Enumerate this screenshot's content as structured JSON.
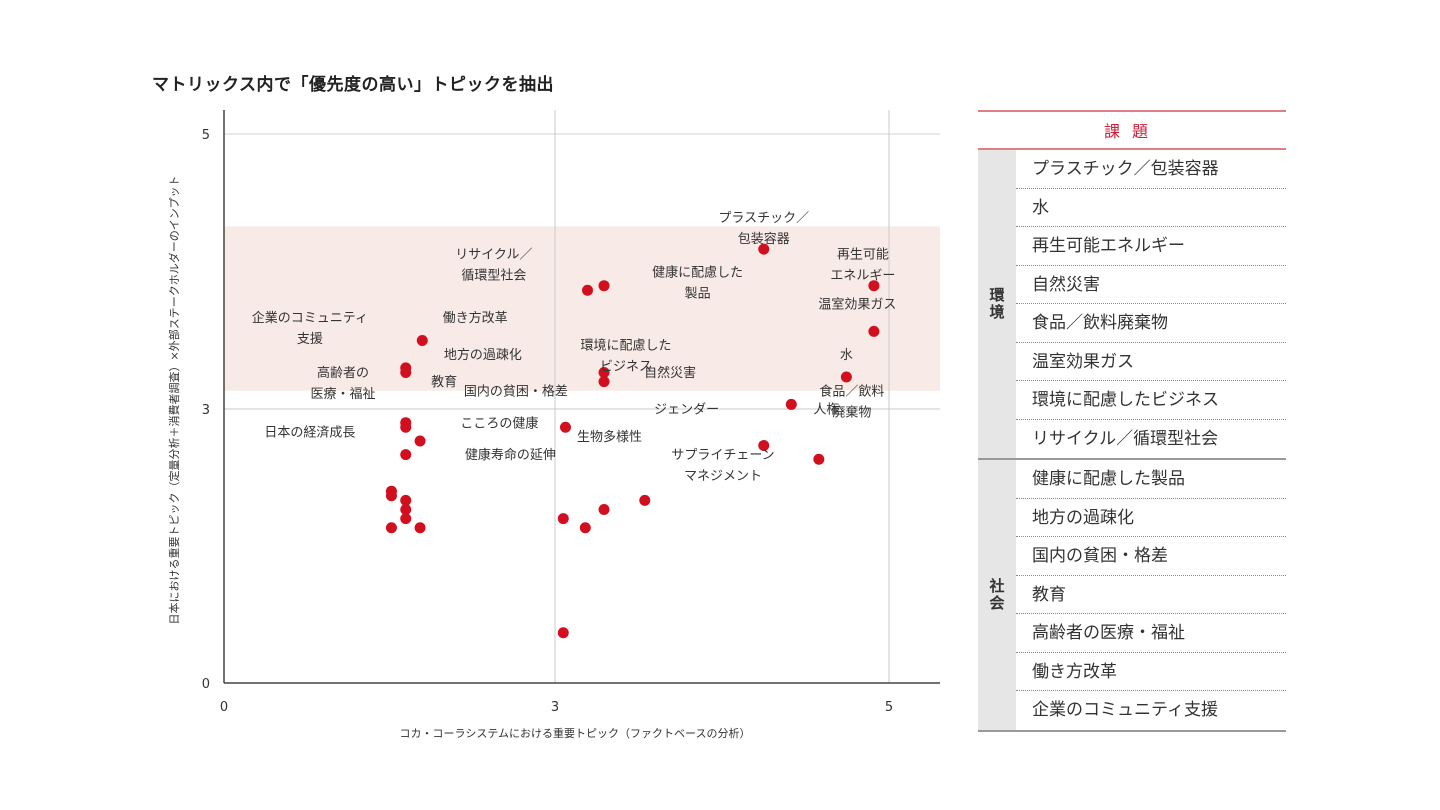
{
  "title": "マトリックス内で「優先度の高い」トピックを抽出",
  "chart_data": {
    "type": "scatter",
    "xlabel": "コカ・コーラシステムにおける重要トピック（ファクトベースの分析）",
    "ylabel": "日本における重要トピック（定量分析＋消費者調査）×外部ステークホルダーのインプット",
    "xlim": [
      0,
      6.5
    ],
    "ylim": [
      0,
      5.5
    ],
    "x_ticks": [
      "0",
      "3",
      "5"
    ],
    "y_ticks": [
      "0",
      "3",
      "5"
    ],
    "highlight_region_y": [
      3.2,
      5.0
    ],
    "point_color": "#d10f1f",
    "highlight_color": "#f8ebe7",
    "points": [
      {
        "x": 4.9,
        "y": 4.75
      },
      {
        "x": 3.3,
        "y": 4.3
      },
      {
        "x": 3.45,
        "y": 4.35
      },
      {
        "x": 5.9,
        "y": 4.35
      },
      {
        "x": 5.9,
        "y": 3.85
      },
      {
        "x": 1.8,
        "y": 3.75
      },
      {
        "x": 1.65,
        "y": 3.45
      },
      {
        "x": 1.65,
        "y": 3.4
      },
      {
        "x": 3.45,
        "y": 3.4
      },
      {
        "x": 3.45,
        "y": 3.3
      },
      {
        "x": 5.65,
        "y": 3.35
      },
      {
        "x": 5.15,
        "y": 3.05
      },
      {
        "x": 1.65,
        "y": 2.85
      },
      {
        "x": 1.65,
        "y": 2.8
      },
      {
        "x": 1.78,
        "y": 2.65
      },
      {
        "x": 3.1,
        "y": 2.8
      },
      {
        "x": 1.65,
        "y": 2.5
      },
      {
        "x": 4.9,
        "y": 2.6
      },
      {
        "x": 5.4,
        "y": 2.45
      },
      {
        "x": 1.52,
        "y": 2.1
      },
      {
        "x": 1.52,
        "y": 2.05
      },
      {
        "x": 1.65,
        "y": 2.0
      },
      {
        "x": 1.65,
        "y": 1.9
      },
      {
        "x": 1.65,
        "y": 1.8
      },
      {
        "x": 3.82,
        "y": 2.0
      },
      {
        "x": 3.45,
        "y": 1.9
      },
      {
        "x": 3.08,
        "y": 1.8
      },
      {
        "x": 3.28,
        "y": 1.7
      },
      {
        "x": 1.52,
        "y": 1.7
      },
      {
        "x": 1.78,
        "y": 1.7
      },
      {
        "x": 3.08,
        "y": 0.55
      }
    ],
    "annotations": [
      {
        "lines": [
          "プラスチック／",
          "包装容器"
        ],
        "x": 4.9,
        "y": 5.05,
        "anchor": "middle"
      },
      {
        "lines": [
          "再生可能",
          "エネルギー"
        ],
        "x": 5.8,
        "y": 4.65,
        "anchor": "middle"
      },
      {
        "lines": [
          "温室効果ガス"
        ],
        "x": 5.75,
        "y": 4.1,
        "anchor": "middle"
      },
      {
        "lines": [
          "リサイクル／",
          "循環型社会"
        ],
        "x": 2.45,
        "y": 4.65,
        "anchor": "middle"
      },
      {
        "lines": [
          "健康に配慮した",
          "製品"
        ],
        "x": 4.3,
        "y": 4.45,
        "anchor": "middle"
      },
      {
        "lines": [
          "企業のコミュニティ",
          "支援"
        ],
        "x": 0.78,
        "y": 3.95,
        "anchor": "middle"
      },
      {
        "lines": [
          "働き方改革"
        ],
        "x": 2.28,
        "y": 3.95,
        "anchor": "middle"
      },
      {
        "lines": [
          "環境に配慮した",
          "ビジネス"
        ],
        "x": 3.65,
        "y": 3.65,
        "anchor": "middle"
      },
      {
        "lines": [
          "地方の過疎化"
        ],
        "x": 2.35,
        "y": 3.55,
        "anchor": "middle"
      },
      {
        "lines": [
          "水"
        ],
        "x": 5.65,
        "y": 3.55,
        "anchor": "middle"
      },
      {
        "lines": [
          "高齢者の",
          "医療・福祉"
        ],
        "x": 1.08,
        "y": 3.35,
        "anchor": "middle"
      },
      {
        "lines": [
          "教育"
        ],
        "x": 1.88,
        "y": 3.25,
        "anchor": "start"
      },
      {
        "lines": [
          "自然災害"
        ],
        "x": 4.05,
        "y": 3.35,
        "anchor": "middle"
      },
      {
        "lines": [
          "国内の貧困・格差"
        ],
        "x": 2.65,
        "y": 3.15,
        "anchor": "middle"
      },
      {
        "lines": [
          "食品／飲料",
          "廃棄物"
        ],
        "x": 5.7,
        "y": 3.15,
        "anchor": "middle"
      },
      {
        "lines": [
          "ジェンダー"
        ],
        "x": 4.2,
        "y": 2.95,
        "anchor": "middle"
      },
      {
        "lines": [
          "人権"
        ],
        "x": 5.35,
        "y": 2.95,
        "anchor": "start"
      },
      {
        "lines": [
          "日本の経済成長"
        ],
        "x": 0.78,
        "y": 2.7,
        "anchor": "middle"
      },
      {
        "lines": [
          "こころの健康"
        ],
        "x": 2.5,
        "y": 2.8,
        "anchor": "middle"
      },
      {
        "lines": [
          "生物多様性"
        ],
        "x": 3.5,
        "y": 2.65,
        "anchor": "middle"
      },
      {
        "lines": [
          "健康寿命の延伸"
        ],
        "x": 2.6,
        "y": 2.45,
        "anchor": "middle"
      },
      {
        "lines": [
          "サプライチェーン",
          "マネジメント"
        ],
        "x": 4.53,
        "y": 2.45,
        "anchor": "middle"
      }
    ]
  },
  "issues_table": {
    "header": "課題",
    "groups": [
      {
        "category": "環境",
        "items": [
          "プラスチック／包装容器",
          "水",
          "再生可能エネルギー",
          "自然災害",
          "食品／飲料廃棄物",
          "温室効果ガス",
          "環境に配慮したビジネス",
          "リサイクル／循環型社会"
        ]
      },
      {
        "category": "社会",
        "items": [
          "健康に配慮した製品",
          "地方の過疎化",
          "国内の貧困・格差",
          "教育",
          "高齢者の医療・福祉",
          "働き方改革",
          "企業のコミュニティ支援"
        ]
      }
    ]
  }
}
